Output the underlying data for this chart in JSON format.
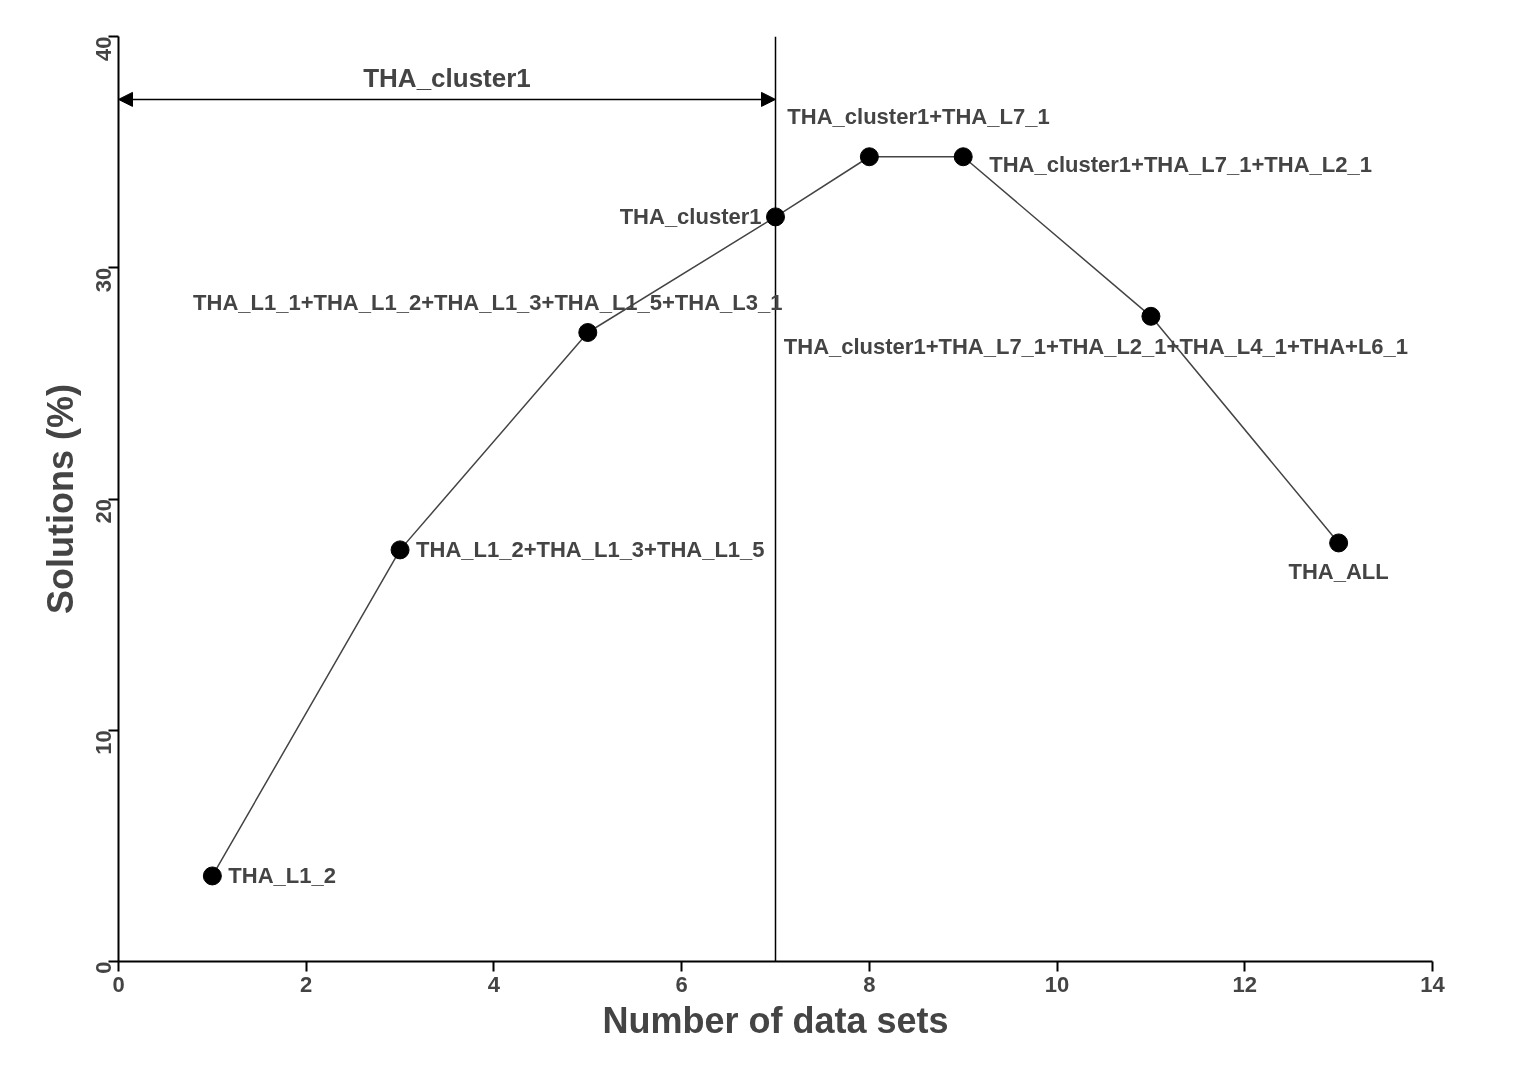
{
  "chart_data": {
    "type": "line",
    "xlabel": "Number of data sets",
    "ylabel": "Solutions (%)",
    "x": [
      1,
      3,
      5,
      7,
      8,
      9,
      11,
      13
    ],
    "series": [
      {
        "color": "#000000",
        "values": [
          3.7,
          17.8,
          27.2,
          32.2,
          34.8,
          34.8,
          27.9,
          18.1
        ]
      }
    ],
    "xlim": [
      0,
      14
    ],
    "xticks": [
      0,
      2,
      4,
      6,
      8,
      10,
      12,
      14
    ],
    "ylim": [
      0,
      40
    ],
    "yticks": [
      0,
      10,
      20,
      30,
      40
    ],
    "marker": "circle",
    "line_style": "solid",
    "ref_lines": [
      {
        "axis": "x",
        "value": 7
      }
    ],
    "annotations": [
      "THA_cluster1",
      {
        "text": "THA_L1_2",
        "x": 1,
        "y": 3.7
      },
      {
        "text": "THA_L1_2+THA_L1_3+THA_L1_5",
        "x": 3,
        "y": 17.8
      },
      {
        "text": "THA_L1_1+THA_L1_2+THA_L1_3+THA_L1_5+THA_L3_1",
        "x": 5,
        "y": 27.2
      },
      {
        "text": "THA_cluster1",
        "x": 7,
        "y": 32.2
      },
      {
        "text": "THA_cluster1+THA_L7_1",
        "x": 8,
        "y": 34.8
      },
      {
        "text": "THA_cluster1+THA_L7_1+THA_L2_1",
        "x": 9,
        "y": 34.8
      },
      {
        "text": "THA_cluster1+THA_L7_1+THA_L2_1+THA_L4_1+THA+L6_1",
        "x": 11,
        "y": 27.9
      },
      {
        "text": "THA_ALL",
        "x": 13,
        "y": 18.1
      }
    ]
  }
}
